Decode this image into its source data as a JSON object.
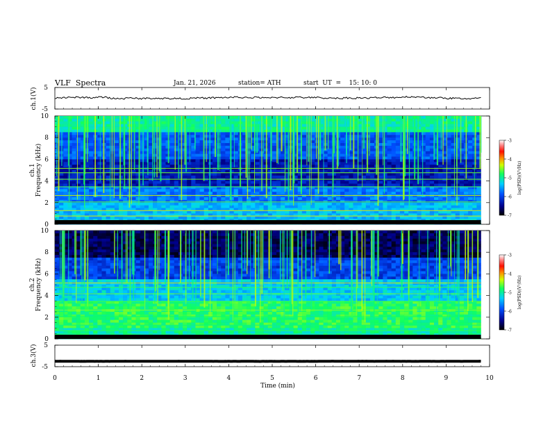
{
  "header": {
    "title": "VLF  Spectra",
    "date": "Jan. 21, 2026",
    "station": "station= ATH",
    "start": "start  UT  =    15: 10: 0"
  },
  "chart_data": [
    {
      "type": "line",
      "panel": "ch1-waveform",
      "ylabel": "ch.1(V)",
      "ylim": [
        -5,
        5
      ],
      "ytick_labels": [
        "5",
        "-5"
      ],
      "series": [
        {
          "values_description_free": true,
          "mean": 0.2,
          "amplitude": 0.8
        }
      ]
    },
    {
      "type": "heatmap",
      "panel": "ch1-spectrogram",
      "ylabel": "ch.1\nFrequency  (kHz)",
      "ylim": [
        0,
        10
      ],
      "ytick_labels": [
        "0",
        "2",
        "4",
        "6",
        "8",
        "10"
      ],
      "colorbar": {
        "label": "log(PSD)(V²/Hz)",
        "ticks": [
          "-3",
          "-4",
          "-5",
          "-6",
          "-7"
        ],
        "range": [
          -7,
          -3
        ]
      }
    },
    {
      "type": "heatmap",
      "panel": "ch2-spectrogram",
      "ylabel": "ch.2\nFrequency  (kHz)",
      "ylim": [
        0,
        10
      ],
      "ytick_labels": [
        "0",
        "2",
        "4",
        "6",
        "8",
        "10"
      ],
      "colorbar": {
        "label": "log(PSD)(V²/Hz)",
        "ticks": [
          "-3",
          "-4",
          "-5",
          "-6",
          "-7"
        ],
        "range": [
          -7,
          -3
        ]
      }
    },
    {
      "type": "line",
      "panel": "ch3-waveform",
      "ylabel": "ch.3(V)",
      "ylim": [
        -5,
        5
      ],
      "ytick_labels": [
        "5",
        "-5"
      ],
      "series": [
        {
          "mean": -2.5,
          "amplitude": 0.2
        }
      ]
    }
  ],
  "xaxis": {
    "label": "Time  (min)",
    "xlim": [
      0,
      10
    ],
    "ticks": [
      "0",
      "1",
      "2",
      "3",
      "4",
      "5",
      "6",
      "7",
      "8",
      "9",
      "10"
    ],
    "data_end": 9.8
  },
  "colors": {
    "low": "#00007a",
    "mid": "#00c0ff",
    "high": "#ff2000",
    "axis": "#000000"
  }
}
